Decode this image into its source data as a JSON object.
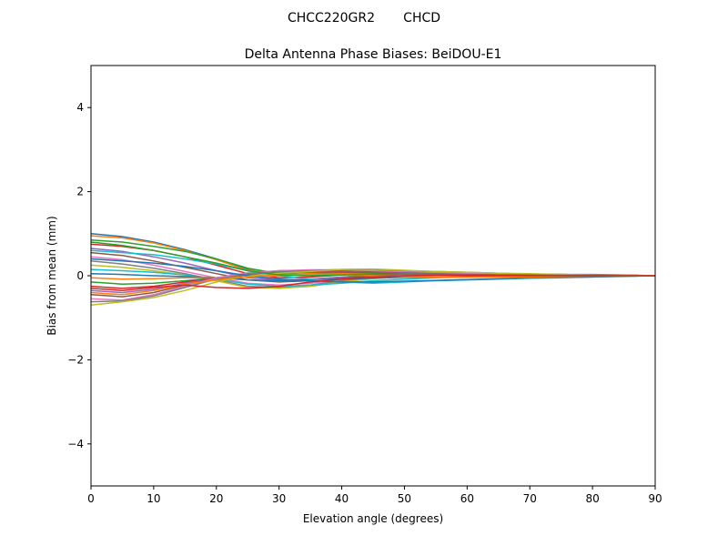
{
  "chart_data": {
    "type": "line",
    "suptitle": "CHCC220GR2       CHCD",
    "title": "Delta Antenna Phase Biases: BeiDOU-E1",
    "xlabel": "Elevation angle (degrees)",
    "ylabel": "Bias from mean (mm)",
    "xlim": [
      0,
      90
    ],
    "ylim": [
      -5,
      5
    ],
    "xticks": [
      0,
      10,
      20,
      30,
      40,
      50,
      60,
      70,
      80,
      90
    ],
    "yticks": [
      -4,
      -2,
      0,
      2,
      4
    ],
    "ytick_labels": [
      "−4",
      "−2",
      "0",
      "2",
      "4"
    ],
    "grid": false,
    "colors": [
      "#1f77b4",
      "#ff7f0e",
      "#2ca02c",
      "#d62728",
      "#9467bd",
      "#8c564b",
      "#e377c2",
      "#7f7f7f",
      "#bcbd22",
      "#17becf"
    ],
    "x": [
      0,
      5,
      10,
      15,
      20,
      25,
      30,
      35,
      40,
      45,
      50,
      55,
      60,
      65,
      70,
      75,
      80,
      85,
      90
    ],
    "series": [
      {
        "values": [
          1.0,
          0.93,
          0.8,
          0.62,
          0.4,
          0.15,
          0.02,
          0.05,
          0.08,
          0.09,
          0.08,
          0.07,
          0.06,
          0.05,
          0.04,
          0.03,
          0.03,
          0.02,
          0.0
        ]
      },
      {
        "values": [
          0.95,
          0.9,
          0.78,
          0.6,
          0.38,
          0.13,
          0.08,
          0.1,
          0.12,
          0.11,
          0.09,
          0.08,
          0.06,
          0.05,
          0.04,
          0.03,
          0.02,
          0.01,
          0.0
        ]
      },
      {
        "values": [
          0.85,
          0.8,
          0.7,
          0.58,
          0.4,
          0.18,
          0.05,
          0.03,
          0.06,
          0.08,
          0.07,
          0.06,
          0.05,
          0.04,
          0.04,
          0.03,
          0.02,
          0.01,
          0.0
        ]
      },
      {
        "values": [
          0.75,
          0.7,
          0.6,
          0.45,
          0.25,
          0.05,
          -0.05,
          -0.03,
          0.02,
          0.05,
          0.06,
          0.05,
          0.04,
          0.03,
          0.03,
          0.02,
          0.02,
          0.01,
          0.0
        ]
      },
      {
        "values": [
          0.65,
          0.58,
          0.45,
          0.3,
          0.12,
          -0.05,
          -0.1,
          -0.08,
          -0.03,
          0.02,
          0.04,
          0.04,
          0.03,
          0.03,
          0.02,
          0.02,
          0.01,
          0.01,
          0.0
        ]
      },
      {
        "values": [
          0.55,
          0.48,
          0.35,
          0.2,
          0.05,
          -0.1,
          -0.15,
          -0.12,
          -0.06,
          0.0,
          0.03,
          0.03,
          0.03,
          0.02,
          0.02,
          0.01,
          0.01,
          0.0,
          0.0
        ]
      },
      {
        "values": [
          0.45,
          0.38,
          0.25,
          0.1,
          -0.05,
          -0.18,
          -0.22,
          -0.18,
          -0.1,
          -0.03,
          0.01,
          0.02,
          0.02,
          0.02,
          0.01,
          0.01,
          0.01,
          0.0,
          0.0
        ]
      },
      {
        "values": [
          0.35,
          0.28,
          0.18,
          0.05,
          -0.1,
          -0.25,
          -0.28,
          -0.22,
          -0.12,
          -0.05,
          0.0,
          0.02,
          0.02,
          0.01,
          0.01,
          0.01,
          0.0,
          0.0,
          0.0
        ]
      },
      {
        "values": [
          0.25,
          0.2,
          0.12,
          0.02,
          -0.12,
          -0.28,
          -0.3,
          -0.25,
          -0.15,
          -0.07,
          -0.02,
          0.01,
          0.01,
          0.01,
          0.01,
          0.0,
          0.0,
          0.0,
          0.0
        ]
      },
      {
        "values": [
          0.15,
          0.12,
          0.08,
          0.02,
          -0.08,
          -0.2,
          -0.25,
          -0.22,
          -0.18,
          -0.12,
          -0.08,
          -0.05,
          -0.03,
          -0.02,
          -0.01,
          -0.01,
          0.0,
          0.0,
          0.0
        ]
      },
      {
        "values": [
          0.05,
          0.03,
          0.0,
          -0.02,
          -0.05,
          -0.1,
          -0.12,
          -0.1,
          -0.08,
          -0.06,
          -0.04,
          -0.03,
          -0.02,
          -0.02,
          -0.01,
          -0.01,
          0.0,
          0.0,
          0.0
        ]
      },
      {
        "values": [
          -0.05,
          -0.08,
          -0.07,
          -0.05,
          -0.05,
          -0.03,
          0.0,
          0.03,
          0.05,
          0.05,
          0.04,
          0.03,
          0.02,
          0.02,
          0.01,
          0.01,
          0.0,
          0.0,
          0.0
        ]
      },
      {
        "values": [
          -0.15,
          -0.2,
          -0.18,
          -0.12,
          -0.05,
          0.02,
          0.06,
          0.08,
          0.08,
          0.07,
          0.05,
          0.04,
          0.03,
          0.02,
          0.02,
          0.01,
          0.01,
          0.0,
          0.0
        ]
      },
      {
        "values": [
          -0.25,
          -0.3,
          -0.25,
          -0.15,
          -0.05,
          0.03,
          0.08,
          0.1,
          0.1,
          0.08,
          0.06,
          0.05,
          0.04,
          0.03,
          0.02,
          0.02,
          0.01,
          0.0,
          0.0
        ]
      },
      {
        "values": [
          -0.35,
          -0.4,
          -0.32,
          -0.18,
          -0.05,
          0.05,
          0.1,
          0.12,
          0.11,
          0.09,
          0.07,
          0.06,
          0.05,
          0.04,
          0.03,
          0.02,
          0.01,
          0.01,
          0.0
        ]
      },
      {
        "values": [
          -0.45,
          -0.5,
          -0.4,
          -0.22,
          -0.05,
          0.06,
          0.12,
          0.13,
          0.12,
          0.1,
          0.08,
          0.07,
          0.05,
          0.04,
          0.03,
          0.02,
          0.01,
          0.01,
          0.0
        ]
      },
      {
        "values": [
          -0.55,
          -0.58,
          -0.45,
          -0.25,
          -0.05,
          0.07,
          0.12,
          0.14,
          0.14,
          0.12,
          0.1,
          0.08,
          0.06,
          0.05,
          0.04,
          0.03,
          0.02,
          0.01,
          0.0
        ]
      },
      {
        "values": [
          -0.62,
          -0.6,
          -0.48,
          -0.28,
          -0.08,
          0.05,
          0.1,
          0.12,
          0.15,
          0.15,
          0.12,
          0.1,
          0.08,
          0.06,
          0.04,
          0.03,
          0.02,
          0.01,
          0.0
        ]
      },
      {
        "values": [
          -0.7,
          -0.62,
          -0.52,
          -0.35,
          -0.15,
          0.0,
          0.06,
          0.1,
          0.15,
          0.16,
          0.13,
          0.1,
          0.08,
          0.06,
          0.05,
          0.03,
          0.02,
          0.01,
          0.0
        ]
      },
      {
        "values": [
          0.6,
          0.55,
          0.5,
          0.4,
          0.28,
          0.12,
          0.0,
          -0.08,
          -0.15,
          -0.18,
          -0.15,
          -0.12,
          -0.1,
          -0.08,
          -0.06,
          -0.05,
          -0.03,
          -0.02,
          0.0
        ]
      },
      {
        "values": [
          0.4,
          0.35,
          0.3,
          0.22,
          0.12,
          0.0,
          -0.08,
          -0.12,
          -0.15,
          -0.15,
          -0.13,
          -0.11,
          -0.09,
          -0.07,
          -0.05,
          -0.04,
          -0.03,
          -0.01,
          0.0
        ]
      },
      {
        "values": [
          -0.4,
          -0.45,
          -0.35,
          -0.2,
          -0.1,
          -0.02,
          0.02,
          0.05,
          0.03,
          0.0,
          -0.02,
          -0.03,
          -0.04,
          -0.03,
          -0.03,
          -0.02,
          -0.01,
          -0.01,
          0.0
        ]
      },
      {
        "values": [
          0.8,
          0.72,
          0.6,
          0.45,
          0.3,
          0.12,
          0.02,
          0.0,
          0.02,
          0.04,
          0.04,
          0.03,
          0.03,
          0.02,
          0.02,
          0.01,
          0.01,
          0.0,
          0.0
        ]
      },
      {
        "values": [
          -0.3,
          -0.35,
          -0.28,
          -0.22,
          -0.28,
          -0.3,
          -0.25,
          -0.15,
          -0.08,
          -0.03,
          0.0,
          0.01,
          0.01,
          0.01,
          0.0,
          0.0,
          0.0,
          0.0,
          0.0
        ]
      }
    ]
  }
}
